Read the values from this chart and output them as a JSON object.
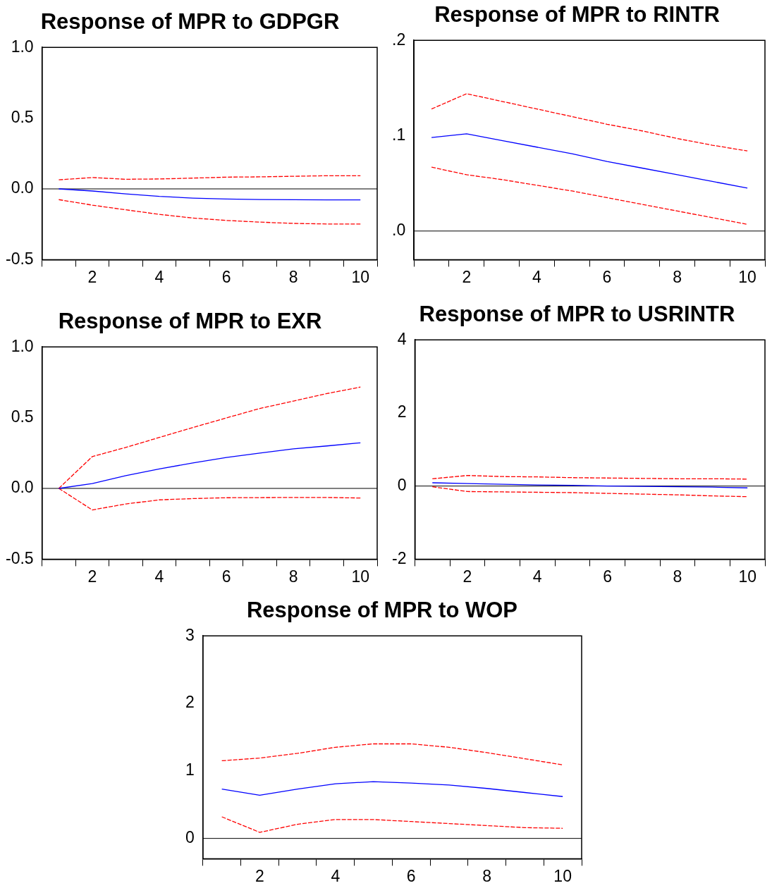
{
  "chart_data": [
    {
      "type": "line",
      "title": "Response of MPR to GDPGR",
      "categories": [
        null,
        "2",
        null,
        "4",
        null,
        "6",
        null,
        "8",
        null,
        "10"
      ],
      "ylim": [
        -0.5,
        1.0
      ],
      "yticks": [
        {
          "value": -0.5,
          "label": "-0.5"
        },
        {
          "value": 0,
          "label": "0.0"
        },
        {
          "value": 0.5,
          "label": "0.5"
        },
        {
          "value": 1,
          "label": "1.0"
        }
      ],
      "marker": "none",
      "ref_lines": [
        {
          "axis": "y",
          "value": 0,
          "color": "#000000"
        }
      ],
      "series": [
        {
          "color": "#0000ff",
          "line_style": "solid",
          "values": [
            0,
            -0.015,
            -0.035,
            -0.053,
            -0.065,
            -0.072,
            -0.075,
            -0.077,
            -0.078,
            -0.078
          ]
        },
        {
          "color": "#ff0000",
          "line_style": "dashed",
          "values": [
            0.064,
            0.08,
            0.068,
            0.07,
            0.076,
            0.083,
            0.085,
            0.089,
            0.093,
            0.093
          ]
        },
        {
          "color": "#ff0000",
          "line_style": "dashed",
          "values": [
            -0.076,
            -0.115,
            -0.148,
            -0.18,
            -0.206,
            -0.223,
            -0.235,
            -0.244,
            -0.248,
            -0.248
          ]
        }
      ]
    },
    {
      "type": "line",
      "title": "Response of MPR to RINTR",
      "categories": [
        null,
        "2",
        null,
        "4",
        null,
        "6",
        null,
        "8",
        null,
        "10"
      ],
      "ylim": [
        -0.03,
        0.2
      ],
      "yticks": [
        {
          "value": 0,
          "label": ".0"
        },
        {
          "value": 0.1,
          "label": ".1"
        },
        {
          "value": 0.2,
          "label": ".2"
        }
      ],
      "marker": "none",
      "ref_lines": [
        {
          "axis": "y",
          "value": 0,
          "color": "#000000"
        }
      ],
      "series": [
        {
          "color": "#0000ff",
          "line_style": "solid",
          "values": [
            0.098,
            0.102,
            0.095,
            0.088,
            0.081,
            0.073,
            0.066,
            0.059,
            0.052,
            0.045
          ]
        },
        {
          "color": "#ff0000",
          "line_style": "dashed",
          "values": [
            0.128,
            0.144,
            0.136,
            0.128,
            0.12,
            0.112,
            0.105,
            0.097,
            0.09,
            0.084
          ]
        },
        {
          "color": "#ff0000",
          "line_style": "dashed",
          "values": [
            0.067,
            0.059,
            0.054,
            0.048,
            0.042,
            0.035,
            0.028,
            0.021,
            0.014,
            0.007
          ]
        }
      ]
    },
    {
      "type": "line",
      "title": "Response of MPR to EXR",
      "categories": [
        null,
        "2",
        null,
        "4",
        null,
        "6",
        null,
        "8",
        null,
        "10"
      ],
      "ylim": [
        -0.5,
        1.0
      ],
      "yticks": [
        {
          "value": -0.5,
          "label": "-0.5"
        },
        {
          "value": 0,
          "label": "0.0"
        },
        {
          "value": 0.5,
          "label": "0.5"
        },
        {
          "value": 1,
          "label": "1.0"
        }
      ],
      "marker": "none",
      "ref_lines": [
        {
          "axis": "y",
          "value": 0,
          "color": "#000000"
        }
      ],
      "series": [
        {
          "color": "#0000ff",
          "line_style": "solid",
          "values": [
            0,
            0.034,
            0.09,
            0.138,
            0.18,
            0.218,
            0.25,
            0.28,
            0.3,
            0.322
          ]
        },
        {
          "color": "#ff0000",
          "line_style": "dashed",
          "values": [
            0,
            0.225,
            0.29,
            0.36,
            0.43,
            0.498,
            0.565,
            0.617,
            0.67,
            0.716
          ]
        },
        {
          "color": "#ff0000",
          "line_style": "dashed",
          "values": [
            0,
            -0.152,
            -0.11,
            -0.081,
            -0.072,
            -0.066,
            -0.065,
            -0.064,
            -0.064,
            -0.068
          ]
        }
      ]
    },
    {
      "type": "line",
      "title": "Response of MPR to USRINTR",
      "categories": [
        null,
        "2",
        null,
        "4",
        null,
        "6",
        null,
        "8",
        null,
        "10"
      ],
      "ylim": [
        -2,
        4
      ],
      "yticks": [
        -2,
        0,
        2,
        4
      ],
      "marker": "none",
      "ref_lines": [
        {
          "axis": "y",
          "value": 0,
          "color": "#000000"
        }
      ],
      "series": [
        {
          "color": "#0000ff",
          "line_style": "solid",
          "values": [
            0.09,
            0.07,
            0.05,
            0.03,
            0.02,
            0,
            -0.01,
            -0.02,
            -0.03,
            -0.05
          ]
        },
        {
          "color": "#ff0000",
          "line_style": "dashed",
          "values": [
            0.2,
            0.29,
            0.26,
            0.25,
            0.23,
            0.22,
            0.21,
            0.2,
            0.2,
            0.19
          ]
        },
        {
          "color": "#ff0000",
          "line_style": "dashed",
          "values": [
            -0.02,
            -0.15,
            -0.16,
            -0.17,
            -0.18,
            -0.2,
            -0.22,
            -0.24,
            -0.27,
            -0.29
          ]
        }
      ]
    },
    {
      "type": "line",
      "title": "Response of MPR to WOP",
      "categories": [
        null,
        "2",
        null,
        "4",
        null,
        "6",
        null,
        "8",
        null,
        "10"
      ],
      "ylim": [
        -0.3,
        3
      ],
      "yticks": [
        0,
        1,
        2,
        3
      ],
      "marker": "none",
      "ref_lines": [
        {
          "axis": "y",
          "value": 0,
          "color": "#000000"
        }
      ],
      "series": [
        {
          "color": "#0000ff",
          "line_style": "solid",
          "values": [
            0.73,
            0.64,
            0.73,
            0.81,
            0.84,
            0.82,
            0.79,
            0.74,
            0.68,
            0.62
          ]
        },
        {
          "color": "#ff0000",
          "line_style": "dashed",
          "values": [
            1.15,
            1.19,
            1.26,
            1.35,
            1.4,
            1.4,
            1.35,
            1.27,
            1.18,
            1.09
          ]
        },
        {
          "color": "#ff0000",
          "line_style": "dashed",
          "values": [
            0.32,
            0.09,
            0.21,
            0.28,
            0.28,
            0.25,
            0.22,
            0.19,
            0.16,
            0.15
          ]
        }
      ]
    }
  ]
}
